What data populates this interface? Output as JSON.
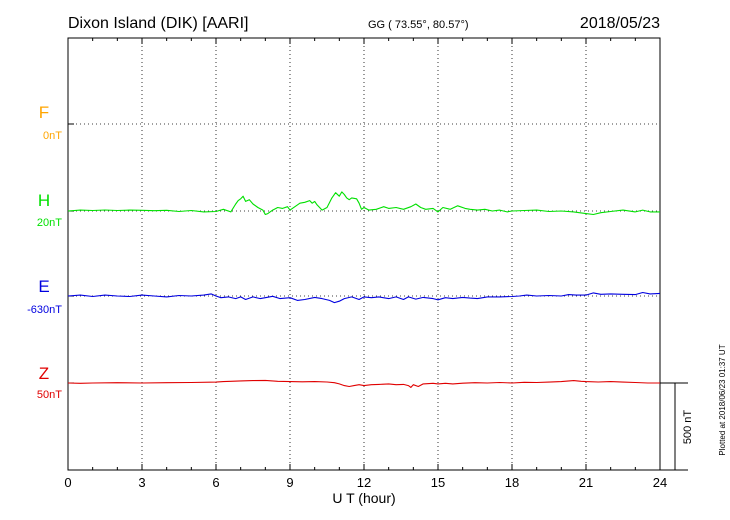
{
  "header": {
    "station": "Dixon Island (DIK)  [AARI]",
    "coords": "GG ( 73.55°,  80.57°)",
    "date": "2018/05/23"
  },
  "footer": {
    "plotted": "Plotted at 2018/06/23 01:37 UT"
  },
  "scale_label": "500 nT",
  "chart_data": {
    "type": "line",
    "xlabel": "U T (hour)",
    "xlim": [
      0,
      24
    ],
    "xticks": [
      0,
      3,
      6,
      9,
      12,
      15,
      18,
      21,
      24
    ],
    "grid": true,
    "scale_bar_nT": 500,
    "series": [
      {
        "name": "F",
        "baseline": "0nT",
        "color": "#ffa500",
        "points": []
      },
      {
        "name": "H",
        "baseline": "20nT",
        "color": "#00e000",
        "points": [
          [
            0,
            0
          ],
          [
            0.5,
            5
          ],
          [
            1,
            3
          ],
          [
            1.5,
            6
          ],
          [
            2,
            3
          ],
          [
            2.5,
            5
          ],
          [
            3,
            4
          ],
          [
            3.5,
            2
          ],
          [
            4,
            4
          ],
          [
            4.5,
            -3
          ],
          [
            5,
            3
          ],
          [
            5.5,
            -5
          ],
          [
            6,
            -3
          ],
          [
            6.3,
            10
          ],
          [
            6.6,
            -5
          ],
          [
            6.8,
            40
          ],
          [
            6.9,
            60
          ],
          [
            7,
            70
          ],
          [
            7.1,
            85
          ],
          [
            7.2,
            55
          ],
          [
            7.35,
            65
          ],
          [
            7.5,
            40
          ],
          [
            7.7,
            20
          ],
          [
            7.9,
            5
          ],
          [
            8,
            -20
          ],
          [
            8.1,
            -15
          ],
          [
            8.3,
            5
          ],
          [
            8.5,
            20
          ],
          [
            8.7,
            15
          ],
          [
            8.9,
            25
          ],
          [
            9,
            5
          ],
          [
            9.2,
            25
          ],
          [
            9.4,
            45
          ],
          [
            9.6,
            50
          ],
          [
            9.8,
            60
          ],
          [
            9.9,
            45
          ],
          [
            10,
            55
          ],
          [
            10.1,
            35
          ],
          [
            10.3,
            5
          ],
          [
            10.5,
            20
          ],
          [
            10.7,
            75
          ],
          [
            10.85,
            105
          ],
          [
            11,
            85
          ],
          [
            11.1,
            110
          ],
          [
            11.2,
            95
          ],
          [
            11.3,
            75
          ],
          [
            11.4,
            65
          ],
          [
            11.5,
            75
          ],
          [
            11.7,
            70
          ],
          [
            11.8,
            45
          ],
          [
            11.9,
            10
          ],
          [
            12,
            20
          ],
          [
            12.2,
            5
          ],
          [
            12.5,
            10
          ],
          [
            12.8,
            25
          ],
          [
            13,
            15
          ],
          [
            13.3,
            20
          ],
          [
            13.6,
            10
          ],
          [
            13.9,
            25
          ],
          [
            14.1,
            40
          ],
          [
            14.3,
            20
          ],
          [
            14.5,
            10
          ],
          [
            14.8,
            15
          ],
          [
            15,
            -5
          ],
          [
            15.2,
            20
          ],
          [
            15.5,
            10
          ],
          [
            15.8,
            30
          ],
          [
            16.1,
            15
          ],
          [
            16.3,
            10
          ],
          [
            16.6,
            5
          ],
          [
            16.9,
            10
          ],
          [
            17.2,
            0
          ],
          [
            17.5,
            5
          ],
          [
            17.8,
            -5
          ],
          [
            18,
            0
          ],
          [
            18.5,
            3
          ],
          [
            19,
            5
          ],
          [
            19.5,
            -3
          ],
          [
            20,
            0
          ],
          [
            20.5,
            -5
          ],
          [
            21,
            -15
          ],
          [
            21.3,
            -20
          ],
          [
            21.6,
            -10
          ],
          [
            22,
            -3
          ],
          [
            22.5,
            5
          ],
          [
            23,
            -5
          ],
          [
            23.3,
            5
          ],
          [
            23.6,
            -5
          ],
          [
            24,
            -5
          ]
        ]
      },
      {
        "name": "E",
        "baseline": "-630nT",
        "color": "#0000e0",
        "points": [
          [
            0,
            0
          ],
          [
            0.5,
            5
          ],
          [
            1,
            -3
          ],
          [
            1.5,
            5
          ],
          [
            2,
            0
          ],
          [
            2.5,
            -3
          ],
          [
            3,
            5
          ],
          [
            3.5,
            0
          ],
          [
            4,
            -5
          ],
          [
            4.5,
            3
          ],
          [
            5,
            0
          ],
          [
            5.5,
            5
          ],
          [
            5.8,
            12
          ],
          [
            6,
            0
          ],
          [
            6.2,
            -10
          ],
          [
            6.5,
            -5
          ],
          [
            6.8,
            -15
          ],
          [
            7,
            -5
          ],
          [
            7.2,
            -20
          ],
          [
            7.5,
            -5
          ],
          [
            7.8,
            -15
          ],
          [
            8,
            -10
          ],
          [
            8.3,
            -2
          ],
          [
            8.6,
            -15
          ],
          [
            9,
            -10
          ],
          [
            9.3,
            -25
          ],
          [
            9.6,
            -20
          ],
          [
            10,
            -8
          ],
          [
            10.3,
            -15
          ],
          [
            10.6,
            -25
          ],
          [
            10.8,
            -38
          ],
          [
            11,
            -30
          ],
          [
            11.2,
            -15
          ],
          [
            11.5,
            -5
          ],
          [
            11.8,
            -20
          ],
          [
            12,
            -5
          ],
          [
            12.3,
            -10
          ],
          [
            12.6,
            -5
          ],
          [
            13,
            -15
          ],
          [
            13.3,
            -5
          ],
          [
            13.6,
            -20
          ],
          [
            13.8,
            -5
          ],
          [
            14.1,
            -18
          ],
          [
            14.4,
            -8
          ],
          [
            14.8,
            -15
          ],
          [
            15,
            -22
          ],
          [
            15.3,
            -10
          ],
          [
            15.6,
            -15
          ],
          [
            16,
            -8
          ],
          [
            16.3,
            -12
          ],
          [
            16.6,
            -15
          ],
          [
            17,
            -5
          ],
          [
            17.5,
            -5
          ],
          [
            18,
            -3
          ],
          [
            18.3,
            0
          ],
          [
            18.6,
            5
          ],
          [
            19,
            0
          ],
          [
            19.5,
            3
          ],
          [
            20,
            0
          ],
          [
            20.3,
            8
          ],
          [
            20.6,
            5
          ],
          [
            21,
            5
          ],
          [
            21.3,
            18
          ],
          [
            21.6,
            10
          ],
          [
            22,
            12
          ],
          [
            22.5,
            10
          ],
          [
            23,
            8
          ],
          [
            23.3,
            20
          ],
          [
            23.6,
            12
          ],
          [
            24,
            15
          ]
        ]
      },
      {
        "name": "Z",
        "baseline": "50nT",
        "color": "#e00000",
        "points": [
          [
            0,
            0
          ],
          [
            0.5,
            -2
          ],
          [
            1,
            0
          ],
          [
            2,
            2
          ],
          [
            3,
            0
          ],
          [
            4,
            2
          ],
          [
            5,
            3
          ],
          [
            6,
            5
          ],
          [
            6.3,
            8
          ],
          [
            6.6,
            10
          ],
          [
            7,
            12
          ],
          [
            7.5,
            14
          ],
          [
            8,
            15
          ],
          [
            8.5,
            10
          ],
          [
            9,
            8
          ],
          [
            9.5,
            7
          ],
          [
            10,
            8
          ],
          [
            10.5,
            6
          ],
          [
            10.8,
            2
          ],
          [
            11,
            -5
          ],
          [
            11.2,
            -15
          ],
          [
            11.4,
            -20
          ],
          [
            11.6,
            -15
          ],
          [
            11.8,
            -10
          ],
          [
            12,
            -15
          ],
          [
            12.3,
            -10
          ],
          [
            12.6,
            -8
          ],
          [
            13,
            -5
          ],
          [
            13.3,
            -10
          ],
          [
            13.6,
            -8
          ],
          [
            13.8,
            -15
          ],
          [
            13.9,
            -25
          ],
          [
            14,
            -10
          ],
          [
            14.2,
            -20
          ],
          [
            14.4,
            -5
          ],
          [
            14.8,
            -2
          ],
          [
            15,
            -5
          ],
          [
            15.3,
            -2
          ],
          [
            15.6,
            -5
          ],
          [
            16,
            -1
          ],
          [
            16.5,
            2
          ],
          [
            17,
            0
          ],
          [
            17.5,
            3
          ],
          [
            18,
            0
          ],
          [
            18.5,
            4
          ],
          [
            19,
            3
          ],
          [
            19.5,
            5
          ],
          [
            20,
            8
          ],
          [
            20.5,
            14
          ],
          [
            20.8,
            10
          ],
          [
            21,
            8
          ],
          [
            21.5,
            6
          ],
          [
            22,
            8
          ],
          [
            22.5,
            5
          ],
          [
            23,
            3
          ],
          [
            23.5,
            0
          ],
          [
            24,
            0
          ]
        ]
      }
    ]
  }
}
